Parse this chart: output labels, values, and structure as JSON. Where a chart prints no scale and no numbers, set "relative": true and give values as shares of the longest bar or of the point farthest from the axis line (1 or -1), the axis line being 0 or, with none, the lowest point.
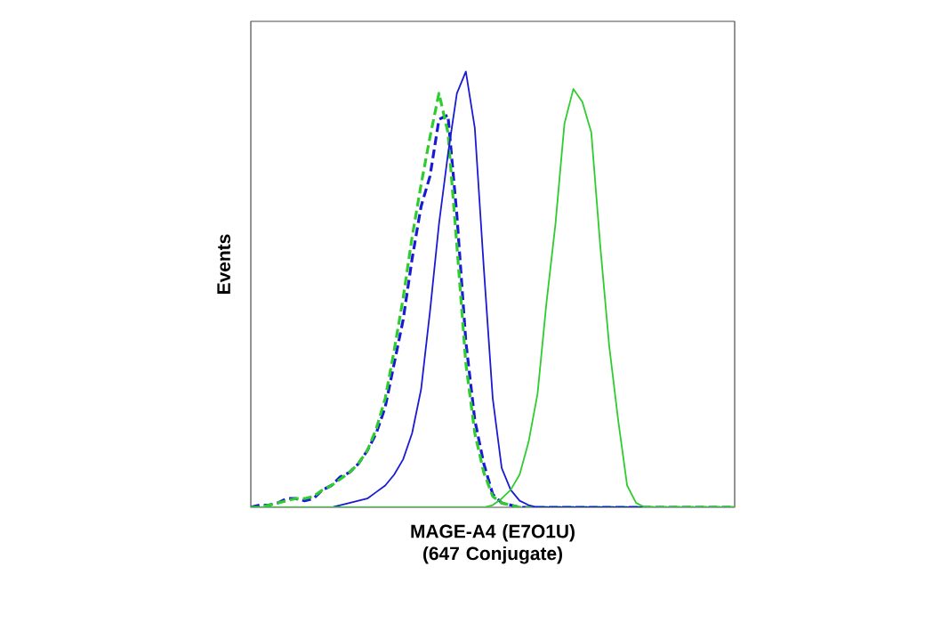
{
  "chart_data": {
    "type": "line",
    "relative": true,
    "xlabel": "MAGE-A4 (E7O1U) (647 Conjugate)",
    "ylabel": "Events",
    "marker": "none",
    "categories": [
      null,
      null,
      null,
      null,
      null,
      null,
      null,
      null,
      null,
      null,
      null,
      null,
      null,
      null,
      null,
      null,
      null,
      null,
      null,
      null,
      null,
      null,
      null,
      null,
      null,
      null,
      null,
      null,
      null,
      null,
      null,
      null,
      null,
      null,
      null,
      null,
      null,
      null,
      null,
      null,
      null,
      null,
      null,
      null,
      null,
      null,
      null,
      null,
      null,
      null,
      null,
      null,
      null,
      null,
      null
    ],
    "series": [
      {
        "color": "#1a1ad4",
        "line_style": "dashed",
        "values": [
          0,
          0.005,
          0.005,
          0.01,
          0.02,
          0.02,
          0.015,
          0.02,
          0.04,
          0.05,
          0.07,
          0.08,
          0.1,
          0.13,
          0.17,
          0.23,
          0.33,
          0.43,
          0.57,
          0.69,
          0.76,
          0.89,
          0.9,
          0.67,
          0.38,
          0.2,
          0.1,
          0.03,
          0.01,
          0.005,
          0,
          0,
          0,
          0,
          0,
          0,
          0,
          0,
          0,
          0,
          0,
          0,
          0,
          0,
          0,
          0,
          0,
          0,
          0,
          0,
          0,
          0,
          0,
          0,
          0
        ]
      },
      {
        "color": "#2ecc2e",
        "line_style": "dashed",
        "values": [
          0,
          0,
          0.005,
          0.01,
          0.015,
          0.02,
          0.02,
          0.025,
          0.04,
          0.05,
          0.065,
          0.08,
          0.1,
          0.13,
          0.18,
          0.25,
          0.36,
          0.48,
          0.62,
          0.74,
          0.85,
          0.95,
          0.86,
          0.6,
          0.33,
          0.17,
          0.08,
          0.025,
          0.01,
          0.005,
          0,
          0,
          0,
          0,
          0,
          0,
          0,
          0,
          0,
          0,
          0,
          0,
          0,
          0,
          0,
          0,
          0,
          0,
          0,
          0,
          0,
          0,
          0,
          0,
          0
        ]
      },
      {
        "color": "#1a1ad4",
        "line_style": "solid",
        "values": [
          0,
          0,
          0,
          0,
          0,
          0,
          0,
          0,
          0,
          0,
          0.005,
          0.01,
          0.015,
          0.02,
          0.035,
          0.05,
          0.075,
          0.11,
          0.17,
          0.27,
          0.45,
          0.65,
          0.81,
          0.95,
          1.0,
          0.87,
          0.55,
          0.25,
          0.09,
          0.04,
          0.015,
          0.005,
          0,
          0,
          0,
          0,
          0,
          0,
          0,
          0,
          0,
          0,
          0,
          0,
          0,
          0,
          0,
          0,
          0,
          0,
          0,
          0,
          0,
          0,
          0
        ]
      },
      {
        "color": "#2ecc2e",
        "line_style": "solid",
        "values": [
          0,
          0,
          0,
          0,
          0,
          0,
          0,
          0,
          0,
          0,
          0,
          0,
          0,
          0,
          0,
          0,
          0,
          0,
          0,
          0,
          0,
          0,
          0,
          0,
          0,
          0,
          0,
          0.005,
          0.02,
          0.04,
          0.075,
          0.15,
          0.26,
          0.47,
          0.65,
          0.88,
          0.96,
          0.93,
          0.86,
          0.6,
          0.37,
          0.2,
          0.05,
          0.01,
          0,
          0,
          0,
          0,
          0,
          0,
          0,
          0,
          0,
          0,
          0
        ]
      }
    ]
  }
}
